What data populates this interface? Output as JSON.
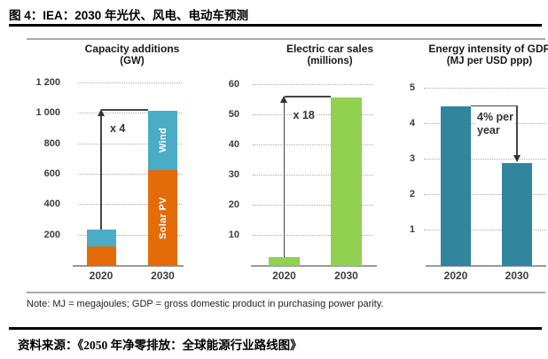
{
  "page": {
    "title": "图 4：IEA：2030 年光伏、风电、电动车预测",
    "note": "Note: MJ = megajoules; GDP = gross domestic product in purchasing power parity.",
    "source": "资料来源：《2050 年净零排放：全球能源行业路线图》"
  },
  "colors": {
    "solar_pv": "#E36C09",
    "wind": "#4BACC6",
    "ev_green": "#92D050",
    "intensity_teal": "#31859C",
    "grid": "#ababab",
    "axis": "#9a9a9a",
    "text_dark": "#3d3d3d"
  },
  "chart_data": [
    {
      "id": "capacity",
      "type": "bar",
      "stacked": true,
      "title": "Capacity additions",
      "subtitle": "(GW)",
      "categories": [
        "2020",
        "2030"
      ],
      "series": [
        {
          "name": "Solar PV",
          "values": [
            130,
            630
          ],
          "color_key": "solar_pv"
        },
        {
          "name": "Wind",
          "values": [
            110,
            390
          ],
          "color_key": "wind"
        }
      ],
      "ylim": [
        0,
        1200
      ],
      "yticks": [
        200,
        400,
        600,
        800,
        1000,
        1200
      ],
      "ytick_labels": [
        "200",
        "400",
        "600",
        "800",
        "1 000",
        "1 200"
      ],
      "grid": true,
      "legend_position": "inside-bar-labels",
      "segment_labels_on_category": "2030",
      "annotation": {
        "type": "multiplier-arrow",
        "text": "x 4"
      }
    },
    {
      "id": "ev",
      "type": "bar",
      "stacked": false,
      "title": "Electric car sales",
      "subtitle": "(millions)",
      "categories": [
        "2020",
        "2030"
      ],
      "series": [
        {
          "name": "Electric car sales",
          "values": [
            3,
            56
          ],
          "color_key": "ev_green"
        }
      ],
      "ylim": [
        0,
        60
      ],
      "yticks": [
        10,
        20,
        30,
        40,
        50,
        60
      ],
      "grid": true,
      "annotation": {
        "type": "multiplier-arrow",
        "text": "x 18"
      }
    },
    {
      "id": "intensity",
      "type": "bar",
      "stacked": false,
      "title": "Energy intensity of GDP",
      "subtitle": "(MJ per USD ppp)",
      "categories": [
        "2020",
        "2030"
      ],
      "series": [
        {
          "name": "Energy intensity of GDP",
          "values": [
            4.5,
            2.9
          ],
          "color_key": "intensity_teal"
        }
      ],
      "ylim": [
        0,
        5
      ],
      "yticks": [
        1,
        2,
        3,
        4,
        5
      ],
      "grid": true,
      "annotation": {
        "type": "decline-arrow",
        "text": "4% per\nyear"
      }
    }
  ]
}
